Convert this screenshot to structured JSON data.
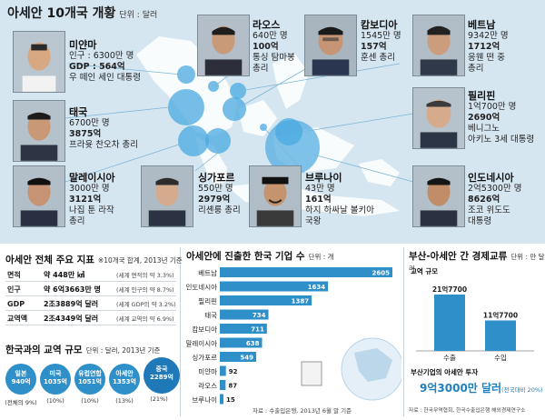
{
  "header": {
    "title": "아세안 10개국 개황",
    "unit": "단위 : 달러"
  },
  "countries": [
    {
      "name": "미얀마",
      "population": "인구 : 6300만 명",
      "gdp_label": "GDP : ",
      "gdp": "564억",
      "leader": "우 떼인 세인 대통령"
    },
    {
      "name": "라오스",
      "population": "640만 명",
      "gdp": "100억",
      "leader": "통싱 탐마봉",
      "leader2": "총리"
    },
    {
      "name": "캄보디아",
      "population": "1545만 명",
      "gdp": "157억",
      "leader": "훈센 총리"
    },
    {
      "name": "베트남",
      "population": "9342만 명",
      "gdp": "1712억",
      "leader": "응웬 떤 중",
      "leader2": "총리"
    },
    {
      "name": "태국",
      "population": "6700만 명",
      "gdp": "3875억",
      "leader": "프라윳 찬오차 총리"
    },
    {
      "name": "필리핀",
      "population": "1억700만 명",
      "gdp": "2690억",
      "leader": "베니그노",
      "leader2": "아키노 3세 대통령"
    },
    {
      "name": "말레이시아",
      "population": "3000만 명",
      "gdp": "3121억",
      "leader": "나집 툰 라작",
      "leader2": "총리"
    },
    {
      "name": "싱가포르",
      "population": "550만 명",
      "gdp": "2979억",
      "leader": "리셴룽 총리"
    },
    {
      "name": "브루나이",
      "population": "43만 명",
      "gdp": "161억",
      "leader": "하지 하싸날 볼키아",
      "leader2": "국왕"
    },
    {
      "name": "인도네시아",
      "population": "2억5300만 명",
      "gdp": "8626억",
      "leader": "조코 위도도",
      "leader2": "대통령"
    }
  ],
  "indicators": {
    "title": "아세안 전체 주요 지표",
    "unit": "※10개국 합계, 2013년 기준",
    "rows": [
      {
        "label": "면적",
        "value": "약 448만 ㎢",
        "note": "(세계 면적의 약 3.3%)"
      },
      {
        "label": "인구",
        "value": "약 6억3663만 명",
        "note": "(세계 인구의 약 8.7%)"
      },
      {
        "label": "GDP",
        "value": "2조3889억 달러",
        "note": "(세계 GDP의 약 3.2%)"
      },
      {
        "label": "교역액",
        "value": "2조4349억 달러",
        "note": "(세계 교역의 약 6.9%)"
      }
    ]
  },
  "trade_scale": {
    "title": "한국과의 교역 규모",
    "unit": "단위 : 달러, 2013년 기준",
    "items": [
      {
        "name": "일본",
        "value": "940억",
        "pct": "(전체의 9%)"
      },
      {
        "name": "미국",
        "value": "1035억",
        "pct": "(10%)"
      },
      {
        "name": "유럽연합",
        "value": "1051억",
        "pct": "(10%)"
      },
      {
        "name": "아세안",
        "value": "1353억",
        "pct": "(13%)"
      },
      {
        "name": "중국",
        "value": "2289억",
        "pct": "(21%)"
      }
    ]
  },
  "chart_data": [
    {
      "type": "bar",
      "title": "아세안에 진출한 한국 기업 수",
      "unit": "단위 : 개",
      "categories": [
        "베트남",
        "인도네시아",
        "필리핀",
        "태국",
        "캄보디아",
        "말레이시아",
        "싱가포르",
        "미얀마",
        "라오스",
        "브루나이"
      ],
      "values": [
        2605,
        1634,
        1387,
        734,
        711,
        638,
        549,
        92,
        87,
        15
      ],
      "source": "자료 : 수출입은행, 2013년 6월 말 기준"
    },
    {
      "type": "bar",
      "title": "부산-아세안 간 경제교류",
      "unit": "단위 : 만 달러",
      "subtitle": "교역 규모",
      "categories": [
        "수출",
        "수입"
      ],
      "values": [
        217700,
        117700
      ],
      "value_labels": [
        "21억7700",
        "11억7700"
      ],
      "ylim": [
        0,
        217700
      ]
    }
  ],
  "busan_investment": {
    "title": "부산기업의 아세안 투자",
    "amount": "9억3000만 달러",
    "note": "(전국대비 20%)"
  },
  "source_bottom": "자료 : 한국무역협회, 한국수출입은행 해외경제연구소",
  "colors": {
    "bar": "#2e8fc9",
    "bubble": "#2e8fc9",
    "map_bg": "#d6e6f1",
    "circle": "#4aa9e0",
    "accent_text": "#1f7fc0"
  }
}
